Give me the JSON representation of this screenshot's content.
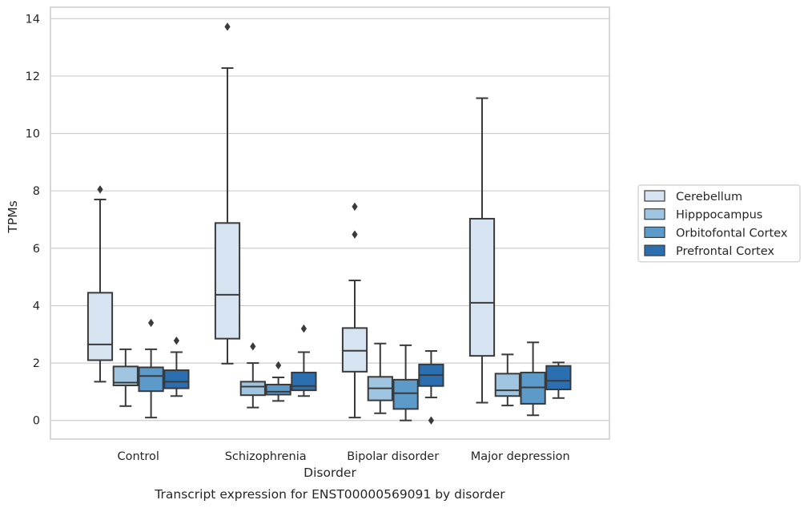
{
  "chart_data": {
    "type": "box",
    "caption": "Transcript expression for ENST00000569091 by disorder",
    "xlabel": "Disorder",
    "ylabel": "TPMs",
    "ylim": [
      -0.65,
      14.4
    ],
    "yticks": [
      0,
      2,
      4,
      6,
      8,
      10,
      12,
      14
    ],
    "grid": true,
    "legend_position": "right",
    "categories": [
      "Control",
      "Schizophrenia",
      "Bipolar disorder",
      "Major depression"
    ],
    "series": [
      {
        "name": "Cerebellum",
        "color": "#d6e3f1",
        "boxes": [
          {
            "min": 1.35,
            "q1": 2.1,
            "median": 2.65,
            "q3": 4.45,
            "max": 7.7,
            "outliers": [
              8.05
            ]
          },
          {
            "min": 1.98,
            "q1": 2.85,
            "median": 4.38,
            "q3": 6.88,
            "max": 12.28,
            "outliers": [
              13.72
            ]
          },
          {
            "min": 0.1,
            "q1": 1.7,
            "median": 2.43,
            "q3": 3.22,
            "max": 4.88,
            "outliers": [
              7.45,
              6.48
            ]
          },
          {
            "min": 0.62,
            "q1": 2.25,
            "median": 4.1,
            "q3": 7.03,
            "max": 11.23,
            "outliers": []
          }
        ]
      },
      {
        "name": "Hipppocampus",
        "color": "#9fc5e0",
        "boxes": [
          {
            "min": 0.5,
            "q1": 1.22,
            "median": 1.32,
            "q3": 1.88,
            "max": 2.48,
            "outliers": []
          },
          {
            "min": 0.45,
            "q1": 0.88,
            "median": 1.18,
            "q3": 1.35,
            "max": 2.0,
            "outliers": [
              2.58
            ]
          },
          {
            "min": 0.25,
            "q1": 0.7,
            "median": 1.12,
            "q3": 1.52,
            "max": 2.68,
            "outliers": []
          },
          {
            "min": 0.52,
            "q1": 0.85,
            "median": 1.05,
            "q3": 1.63,
            "max": 2.3,
            "outliers": []
          }
        ]
      },
      {
        "name": "Orbitofontal Cortex",
        "color": "#5b9ac9",
        "boxes": [
          {
            "min": 0.1,
            "q1": 1.02,
            "median": 1.55,
            "q3": 1.85,
            "max": 2.48,
            "outliers": [
              3.4
            ]
          },
          {
            "min": 0.68,
            "q1": 0.9,
            "median": 1.0,
            "q3": 1.25,
            "max": 1.5,
            "outliers": [
              1.92
            ]
          },
          {
            "min": 0.0,
            "q1": 0.4,
            "median": 0.95,
            "q3": 1.42,
            "max": 2.62,
            "outliers": []
          },
          {
            "min": 0.18,
            "q1": 0.58,
            "median": 1.15,
            "q3": 1.67,
            "max": 2.72,
            "outliers": []
          }
        ]
      },
      {
        "name": "Prefrontal Cortex",
        "color": "#2c6fb0",
        "boxes": [
          {
            "min": 0.85,
            "q1": 1.12,
            "median": 1.35,
            "q3": 1.75,
            "max": 2.38,
            "outliers": [
              2.78
            ]
          },
          {
            "min": 0.85,
            "q1": 1.05,
            "median": 1.2,
            "q3": 1.67,
            "max": 2.38,
            "outliers": [
              3.2
            ]
          },
          {
            "min": 0.8,
            "q1": 1.2,
            "median": 1.58,
            "q3": 1.95,
            "max": 2.42,
            "outliers": [
              0.0
            ]
          },
          {
            "min": 0.78,
            "q1": 1.08,
            "median": 1.38,
            "q3": 1.9,
            "max": 2.02,
            "outliers": []
          }
        ]
      }
    ]
  }
}
